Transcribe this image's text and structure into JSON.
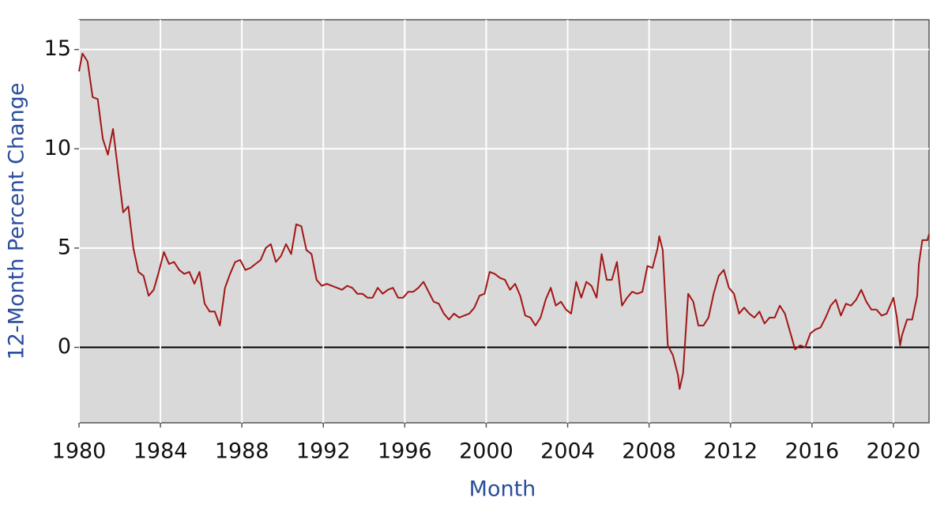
{
  "chart_data": {
    "type": "line",
    "x_label": "Month",
    "y_label": "12-Month Percent Change",
    "x": [
      1980.0,
      1980.17,
      1980.42,
      1980.67,
      1980.92,
      1981.17,
      1981.42,
      1981.67,
      1981.92,
      1982.17,
      1982.42,
      1982.67,
      1982.92,
      1983.17,
      1983.42,
      1983.67,
      1983.92,
      1984.17,
      1984.42,
      1984.67,
      1984.92,
      1985.17,
      1985.42,
      1985.67,
      1985.92,
      1986.17,
      1986.42,
      1986.67,
      1986.92,
      1987.17,
      1987.42,
      1987.67,
      1987.92,
      1988.17,
      1988.42,
      1988.67,
      1988.92,
      1989.17,
      1989.42,
      1989.67,
      1989.92,
      1990.17,
      1990.42,
      1990.67,
      1990.92,
      1991.17,
      1991.42,
      1991.67,
      1991.92,
      1992.17,
      1992.42,
      1992.67,
      1992.92,
      1993.17,
      1993.42,
      1993.67,
      1993.92,
      1994.17,
      1994.42,
      1994.67,
      1994.92,
      1995.17,
      1995.42,
      1995.67,
      1995.92,
      1996.17,
      1996.42,
      1996.67,
      1996.92,
      1997.17,
      1997.42,
      1997.67,
      1997.92,
      1998.17,
      1998.42,
      1998.67,
      1998.92,
      1999.17,
      1999.42,
      1999.67,
      1999.92,
      2000.17,
      2000.42,
      2000.67,
      2000.92,
      2001.17,
      2001.42,
      2001.67,
      2001.92,
      2002.17,
      2002.42,
      2002.67,
      2002.92,
      2003.17,
      2003.42,
      2003.67,
      2003.92,
      2004.17,
      2004.42,
      2004.67,
      2004.92,
      2005.17,
      2005.42,
      2005.67,
      2005.92,
      2006.17,
      2006.42,
      2006.67,
      2006.92,
      2007.17,
      2007.42,
      2007.67,
      2007.92,
      2008.17,
      2008.42,
      2008.5,
      2008.67,
      2008.92,
      2009.17,
      2009.42,
      2009.5,
      2009.67,
      2009.92,
      2010.17,
      2010.42,
      2010.67,
      2010.92,
      2011.17,
      2011.42,
      2011.67,
      2011.92,
      2012.17,
      2012.42,
      2012.67,
      2012.92,
      2013.17,
      2013.42,
      2013.67,
      2013.92,
      2014.17,
      2014.42,
      2014.67,
      2014.92,
      2015.17,
      2015.42,
      2015.67,
      2015.92,
      2016.17,
      2016.42,
      2016.67,
      2016.92,
      2017.17,
      2017.42,
      2017.67,
      2017.92,
      2018.17,
      2018.42,
      2018.67,
      2018.92,
      2019.17,
      2019.42,
      2019.67,
      2019.92,
      2020.0,
      2020.17,
      2020.33,
      2020.42,
      2020.67,
      2020.92,
      2021.17,
      2021.25,
      2021.42,
      2021.67,
      2021.75
    ],
    "values": [
      13.9,
      14.8,
      14.4,
      12.6,
      12.5,
      10.5,
      9.7,
      11.0,
      8.9,
      6.8,
      7.1,
      5.0,
      3.8,
      3.6,
      2.6,
      2.9,
      3.8,
      4.8,
      4.2,
      4.3,
      3.9,
      3.7,
      3.8,
      3.2,
      3.8,
      2.2,
      1.8,
      1.8,
      1.1,
      3.0,
      3.7,
      4.3,
      4.4,
      3.9,
      4.0,
      4.2,
      4.4,
      5.0,
      5.2,
      4.3,
      4.6,
      5.2,
      4.7,
      6.2,
      6.1,
      4.9,
      4.7,
      3.4,
      3.1,
      3.2,
      3.1,
      3.0,
      2.9,
      3.1,
      3.0,
      2.7,
      2.7,
      2.5,
      2.5,
      3.0,
      2.7,
      2.9,
      3.0,
      2.5,
      2.5,
      2.8,
      2.8,
      3.0,
      3.3,
      2.8,
      2.3,
      2.2,
      1.7,
      1.4,
      1.7,
      1.5,
      1.6,
      1.7,
      2.0,
      2.6,
      2.7,
      3.8,
      3.7,
      3.5,
      3.4,
      2.9,
      3.2,
      2.6,
      1.6,
      1.5,
      1.1,
      1.5,
      2.4,
      3.0,
      2.1,
      2.3,
      1.9,
      1.7,
      3.3,
      2.5,
      3.3,
      3.1,
      2.5,
      4.7,
      3.4,
      3.4,
      4.3,
      2.1,
      2.5,
      2.8,
      2.7,
      2.8,
      4.1,
      4.0,
      5.0,
      5.6,
      4.9,
      0.1,
      -0.4,
      -1.4,
      -2.1,
      -1.3,
      2.7,
      2.3,
      1.1,
      1.1,
      1.5,
      2.7,
      3.6,
      3.9,
      3.0,
      2.7,
      1.7,
      2.0,
      1.7,
      1.5,
      1.8,
      1.2,
      1.5,
      1.5,
      2.1,
      1.7,
      0.8,
      -0.1,
      0.1,
      0.0,
      0.7,
      0.9,
      1.0,
      1.5,
      2.1,
      2.4,
      1.6,
      2.2,
      2.1,
      2.4,
      2.9,
      2.3,
      1.9,
      1.9,
      1.6,
      1.7,
      2.3,
      2.5,
      1.5,
      0.1,
      0.6,
      1.4,
      1.4,
      2.6,
      4.2,
      5.4,
      5.4,
      5.7
    ],
    "color": "#a31515",
    "xlim": [
      1980,
      2021.75
    ],
    "xticks": [
      1980,
      1984,
      1988,
      1992,
      1996,
      2000,
      2004,
      2008,
      2012,
      2016,
      2020
    ],
    "ylim": [
      -3.8,
      16.5
    ],
    "yticks": [
      0,
      5,
      10,
      15
    ],
    "grid": true,
    "zero_line": true
  }
}
